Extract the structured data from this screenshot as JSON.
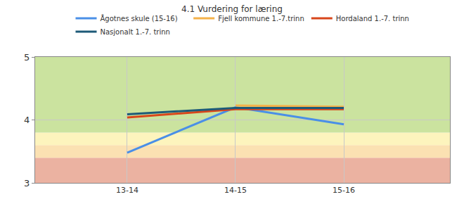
{
  "chart_data": {
    "type": "line",
    "title": "4.1 Vurdering for læring",
    "categories": [
      "13-14",
      "14-15",
      "15-16"
    ],
    "series": [
      {
        "name": "Ågotnes skule (15-16)",
        "color": "#4a8fe7",
        "values": [
          3.48,
          4.2,
          3.93
        ]
      },
      {
        "name": "Fjell kommune 1.-7.trinn",
        "color": "#f4b24a",
        "values": [
          null,
          4.23,
          4.21
        ]
      },
      {
        "name": "Hordaland 1.-7. trinn",
        "color": "#d8461b",
        "values": [
          4.04,
          4.17,
          4.17
        ]
      },
      {
        "name": "Nasjonalt 1.-7. trinn",
        "color": "#1d5a78",
        "values": [
          4.09,
          4.19,
          4.19
        ]
      }
    ],
    "bands": [
      {
        "from": 3,
        "to": 3.4,
        "color": "#ebb2a1"
      },
      {
        "from": 3.4,
        "to": 3.6,
        "color": "#fbe1b2"
      },
      {
        "from": 3.6,
        "to": 3.8,
        "color": "#fdf4bd"
      },
      {
        "from": 3.8,
        "to": 5,
        "color": "#cbe39f"
      }
    ],
    "ylim": [
      3,
      5
    ],
    "yticks": [
      3,
      4,
      5
    ],
    "grid": true,
    "legend": "top"
  }
}
